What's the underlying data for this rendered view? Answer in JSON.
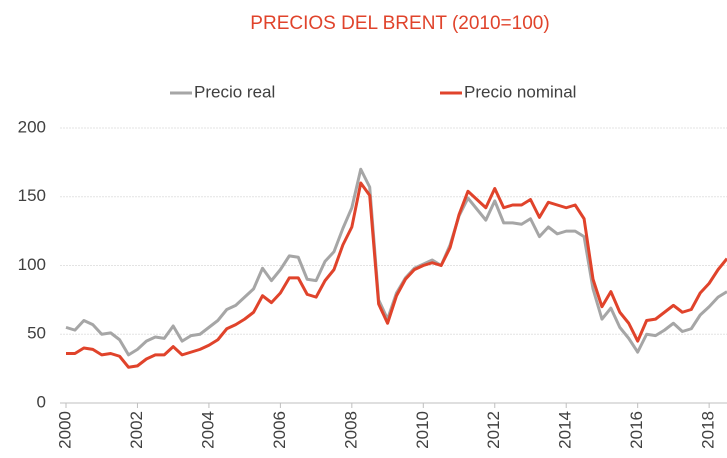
{
  "chart_data": {
    "type": "line",
    "title": "PRECIOS DEL BRENT (2010=100)",
    "x": [
      2000,
      2000.25,
      2000.5,
      2000.75,
      2001,
      2001.25,
      2001.5,
      2001.75,
      2002,
      2002.25,
      2002.5,
      2002.75,
      2003,
      2003.25,
      2003.5,
      2003.75,
      2004,
      2004.25,
      2004.5,
      2004.75,
      2005,
      2005.25,
      2005.5,
      2005.75,
      2006,
      2006.25,
      2006.5,
      2006.75,
      2007,
      2007.25,
      2007.5,
      2007.75,
      2008,
      2008.25,
      2008.5,
      2008.75,
      2009,
      2009.25,
      2009.5,
      2009.75,
      2010,
      2010.25,
      2010.5,
      2010.75,
      2011,
      2011.25,
      2011.5,
      2011.75,
      2012,
      2012.25,
      2012.5,
      2012.75,
      2013,
      2013.25,
      2013.5,
      2013.75,
      2014,
      2014.25,
      2014.5,
      2014.75,
      2015,
      2015.25,
      2015.5,
      2015.75,
      2016,
      2016.25,
      2016.5,
      2016.75,
      2017,
      2017.25,
      2017.5,
      2017.75,
      2018,
      2018.25,
      2018.5
    ],
    "series": [
      {
        "name": "Precio real",
        "color": "#a6a6a6",
        "values": [
          55,
          53,
          60,
          57,
          50,
          51,
          46,
          35,
          39,
          45,
          48,
          47,
          56,
          45,
          49,
          50,
          55,
          60,
          68,
          71,
          77,
          83,
          98,
          89,
          97,
          107,
          106,
          90,
          89,
          103,
          110,
          127,
          142,
          170,
          157,
          75,
          61,
          80,
          91,
          98,
          101,
          104,
          100,
          115,
          136,
          149,
          141,
          133,
          147,
          131,
          131,
          130,
          134,
          121,
          128,
          123,
          125,
          125,
          121,
          83,
          61,
          69,
          55,
          47,
          37,
          50,
          49,
          53,
          58,
          52,
          54,
          64,
          70,
          77,
          81
        ]
      },
      {
        "name": "Precio nominal",
        "color": "#e0432b",
        "values": [
          36,
          36,
          40,
          39,
          35,
          36,
          34,
          26,
          27,
          32,
          35,
          35,
          41,
          35,
          37,
          39,
          42,
          46,
          54,
          57,
          61,
          66,
          78,
          73,
          80,
          91,
          91,
          79,
          77,
          89,
          97,
          115,
          128,
          160,
          151,
          72,
          58,
          78,
          90,
          97,
          100,
          102,
          100,
          113,
          137,
          154,
          148,
          142,
          156,
          142,
          144,
          144,
          148,
          135,
          146,
          144,
          142,
          144,
          134,
          90,
          70,
          81,
          66,
          58,
          45,
          60,
          61,
          66,
          71,
          66,
          68,
          80,
          87,
          97,
          105
        ]
      }
    ],
    "xlim": [
      2000,
      2018.5
    ],
    "xticks": [
      2000,
      2002,
      2004,
      2006,
      2008,
      2010,
      2012,
      2014,
      2016,
      2018
    ],
    "ylim": [
      0,
      200
    ],
    "yticks": [
      0,
      50,
      100,
      150,
      200
    ],
    "grid": true,
    "legend": "top"
  }
}
